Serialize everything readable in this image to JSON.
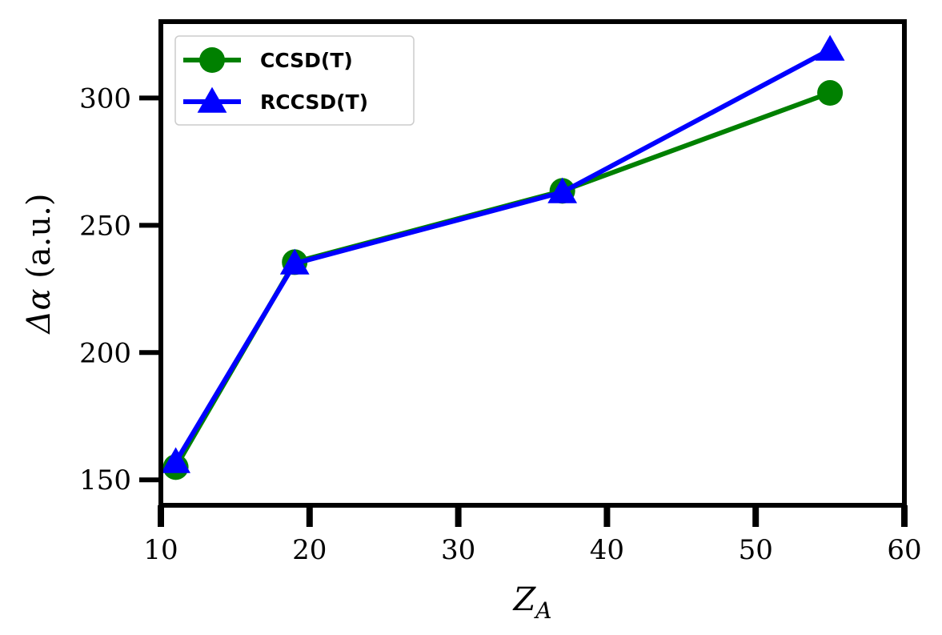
{
  "chart_data": {
    "type": "line",
    "title": "",
    "xlabel_main": "Z",
    "xlabel_sub": "A",
    "ylabel_symbol": "Δα",
    "ylabel_unit": " (a.u.)",
    "xlim": [
      10,
      60
    ],
    "ylim": [
      140,
      330
    ],
    "xticks": [
      10,
      20,
      30,
      40,
      50,
      60
    ],
    "yticks": [
      150,
      200,
      250,
      300
    ],
    "grid": false,
    "legend_position": "top-left",
    "series": [
      {
        "name": "CCSD(T)",
        "color": "#008000",
        "marker": "circle",
        "x": [
          11,
          19,
          37,
          55
        ],
        "y": [
          155,
          235.5,
          263.5,
          302
        ]
      },
      {
        "name": "RCCSD(T)",
        "color": "#0000ff",
        "marker": "triangle",
        "x": [
          11,
          19,
          37,
          55
        ],
        "y": [
          157,
          235,
          263,
          319
        ]
      }
    ]
  }
}
